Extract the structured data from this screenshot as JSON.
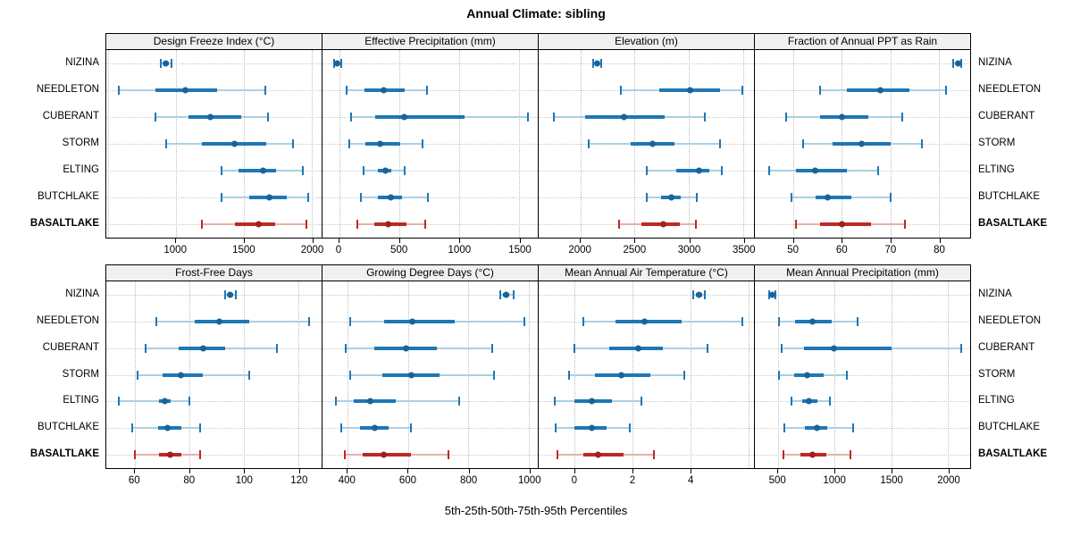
{
  "title": "Annual Climate: sibling",
  "caption": "5th-25th-50th-75th-95th Percentiles",
  "colors": {
    "blue_main": "#1f77b4",
    "blue_light": "#a9cde2",
    "blue_dot": "#186499",
    "red_main": "#bb2a25",
    "red_light": "#e2afa9",
    "red_dot": "#a31f1c",
    "panel_header_bg": "#f0f0f0",
    "border": "#000000",
    "grid": "#bdbdbd"
  },
  "sites": [
    {
      "name": "NIZINA",
      "style": "blue",
      "bold": false
    },
    {
      "name": "NEEDLETON",
      "style": "blue",
      "bold": false
    },
    {
      "name": "CUBERANT",
      "style": "blue",
      "bold": false
    },
    {
      "name": "STORM",
      "style": "blue",
      "bold": false
    },
    {
      "name": "ELTING",
      "style": "blue",
      "bold": false
    },
    {
      "name": "BUTCHLAKE",
      "style": "blue",
      "bold": false
    },
    {
      "name": "BASALTLAKE",
      "style": "red",
      "bold": true
    }
  ],
  "chart_data": {
    "type": "dotplot",
    "subtype": "percentile-ranges",
    "percentile_labels": [
      "5th",
      "25th",
      "50th",
      "75th",
      "95th"
    ],
    "layout": {
      "rows": 2,
      "cols": 4,
      "grid": "dotted",
      "site_labels": "both-sides"
    },
    "panels": [
      {
        "title": "Design Freeze Index (°C)",
        "row": 0,
        "col": 0,
        "domain": [
          490,
          2075
        ],
        "ticks": [
          1000,
          1500,
          2000
        ],
        "grid_ticks": [
          500,
          1000,
          1500,
          2000
        ],
        "series": [
          {
            "site": "NIZINA",
            "values": [
              890,
              910,
              930,
              950,
              970
            ]
          },
          {
            "site": "NEEDLETON",
            "values": [
              585,
              855,
              1075,
              1305,
              1660
            ]
          },
          {
            "site": "CUBERANT",
            "values": [
              850,
              1095,
              1255,
              1485,
              1680
            ]
          },
          {
            "site": "STORM",
            "values": [
              930,
              1195,
              1435,
              1665,
              1865
            ]
          },
          {
            "site": "ELTING",
            "values": [
              1340,
              1465,
              1645,
              1740,
              1940
            ]
          },
          {
            "site": "BUTCHLAKE",
            "values": [
              1340,
              1540,
              1690,
              1820,
              1975
            ]
          },
          {
            "site": "BASALTLAKE",
            "values": [
              1195,
              1435,
              1610,
              1730,
              1960
            ]
          }
        ]
      },
      {
        "title": "Effective Precipitation (mm)",
        "row": 0,
        "col": 1,
        "domain": [
          -140,
          1655
        ],
        "ticks": [
          0,
          500,
          1000,
          1500
        ],
        "grid_ticks": [
          0,
          500,
          1000,
          1500
        ],
        "series": [
          {
            "site": "NIZINA",
            "values": [
              -45,
              -30,
              -15,
              0,
              20
            ]
          },
          {
            "site": "NEEDLETON",
            "values": [
              60,
              210,
              370,
              545,
              735
            ]
          },
          {
            "site": "CUBERANT",
            "values": [
              100,
              300,
              540,
              1045,
              1575
            ]
          },
          {
            "site": "STORM",
            "values": [
              85,
              220,
              340,
              505,
              695
            ]
          },
          {
            "site": "ELTING",
            "values": [
              205,
              320,
              385,
              430,
              545
            ]
          },
          {
            "site": "BUTCHLAKE",
            "values": [
              180,
              325,
              430,
              525,
              740
            ]
          },
          {
            "site": "BASALTLAKE",
            "values": [
              150,
              290,
              410,
              560,
              720
            ]
          }
        ]
      },
      {
        "title": "Elevation (m)",
        "row": 0,
        "col": 2,
        "domain": [
          1615,
          3600
        ],
        "ticks": [
          2000,
          2500,
          3000,
          3500
        ],
        "grid_ticks": [
          2000,
          2500,
          3000,
          3500
        ],
        "series": [
          {
            "site": "NIZINA",
            "values": [
              2115,
              2140,
              2155,
              2170,
              2195
            ]
          },
          {
            "site": "NEEDLETON",
            "values": [
              2375,
              2725,
              3010,
              3285,
              3490
            ]
          },
          {
            "site": "CUBERANT",
            "values": [
              1755,
              2040,
              2400,
              2780,
              3145
            ]
          },
          {
            "site": "STORM",
            "values": [
              2075,
              2465,
              2665,
              2870,
              3290
            ]
          },
          {
            "site": "ELTING",
            "values": [
              2610,
              2880,
              3090,
              3185,
              3300
            ]
          },
          {
            "site": "BUTCHLAKE",
            "values": [
              2610,
              2740,
              2835,
              2925,
              3070
            ]
          },
          {
            "site": "BASALTLAKE",
            "values": [
              2360,
              2560,
              2765,
              2920,
              3065
            ]
          }
        ]
      },
      {
        "title": "Fraction of Annual PPT as Rain",
        "row": 0,
        "col": 3,
        "domain": [
          42,
          86.5
        ],
        "ticks": [
          50,
          60,
          70,
          80
        ],
        "grid_ticks": [
          50,
          60,
          70,
          80
        ],
        "series": [
          {
            "site": "NIZINA",
            "values": [
              83,
              83.5,
              84,
              84.2,
              84.7
            ]
          },
          {
            "site": "NEEDLETON",
            "values": [
              55.5,
              61,
              68,
              74,
              81.5
            ]
          },
          {
            "site": "CUBERANT",
            "values": [
              48.5,
              55.5,
              60,
              65.5,
              72.5
            ]
          },
          {
            "site": "STORM",
            "values": [
              52,
              58,
              64,
              70,
              76.5
            ]
          },
          {
            "site": "ELTING",
            "values": [
              45,
              50.5,
              54.5,
              61,
              67.5
            ]
          },
          {
            "site": "BUTCHLAKE",
            "values": [
              49.5,
              54.5,
              57,
              62,
              70
            ]
          },
          {
            "site": "BASALTLAKE",
            "values": [
              50.5,
              55.5,
              60,
              66,
              73
            ]
          }
        ]
      },
      {
        "title": "Frost-Free Days",
        "row": 1,
        "col": 0,
        "domain": [
          49.5,
          128.5
        ],
        "ticks": [
          60,
          80,
          100,
          120
        ],
        "grid_ticks": [
          60,
          80,
          100,
          120
        ],
        "series": [
          {
            "site": "NIZINA",
            "values": [
              93,
              94,
              95,
              96,
              97
            ]
          },
          {
            "site": "NEEDLETON",
            "values": [
              68,
              82,
              91,
              102,
              124
            ]
          },
          {
            "site": "CUBERANT",
            "values": [
              64,
              76,
              85,
              93,
              112
            ]
          },
          {
            "site": "STORM",
            "values": [
              61,
              70,
              77,
              85,
              102
            ]
          },
          {
            "site": "ELTING",
            "values": [
              54,
              69,
              71,
              73,
              80
            ]
          },
          {
            "site": "BUTCHLAKE",
            "values": [
              59,
              68.5,
              72,
              77,
              84
            ]
          },
          {
            "site": "BASALTLAKE",
            "values": [
              60,
              69,
              73,
              77,
              84
            ]
          }
        ]
      },
      {
        "title": "Growing Degree Days (°C)",
        "row": 1,
        "col": 1,
        "domain": [
          317,
          1030
        ],
        "ticks": [
          400,
          600,
          800,
          1000
        ],
        "grid_ticks": [
          400,
          600,
          800,
          1000
        ],
        "series": [
          {
            "site": "NIZINA",
            "values": [
              905,
              915,
              925,
              935,
              950
            ]
          },
          {
            "site": "NEEDLETON",
            "values": [
              410,
              520,
              615,
              755,
              985
            ]
          },
          {
            "site": "CUBERANT",
            "values": [
              395,
              490,
              595,
              695,
              880
            ]
          },
          {
            "site": "STORM",
            "values": [
              410,
              515,
              610,
              705,
              885
            ]
          },
          {
            "site": "ELTING",
            "values": [
              360,
              420,
              475,
              560,
              770
            ]
          },
          {
            "site": "BUTCHLAKE",
            "values": [
              380,
              440,
              490,
              535,
              610
            ]
          },
          {
            "site": "BASALTLAKE",
            "values": [
              390,
              450,
              520,
              610,
              735
            ]
          }
        ]
      },
      {
        "title": "Mean Annual Air Temperature (°C)",
        "row": 1,
        "col": 2,
        "domain": [
          -1.25,
          6.2
        ],
        "ticks": [
          0,
          2,
          4
        ],
        "grid_ticks": [
          0,
          2,
          4,
          6
        ],
        "series": [
          {
            "site": "NIZINA",
            "values": [
              4.1,
              4.2,
              4.3,
              4.4,
              4.5
            ]
          },
          {
            "site": "NEEDLETON",
            "values": [
              0.3,
              1.4,
              2.4,
              3.7,
              5.8
            ]
          },
          {
            "site": "CUBERANT",
            "values": [
              0.0,
              1.2,
              2.2,
              3.05,
              4.6
            ]
          },
          {
            "site": "STORM",
            "values": [
              -0.2,
              0.7,
              1.6,
              2.6,
              3.8
            ]
          },
          {
            "site": "ELTING",
            "values": [
              -0.7,
              0.0,
              0.6,
              1.3,
              2.3
            ]
          },
          {
            "site": "BUTCHLAKE",
            "values": [
              -0.65,
              0.0,
              0.6,
              1.1,
              1.9
            ]
          },
          {
            "site": "BASALTLAKE",
            "values": [
              -0.6,
              0.3,
              0.8,
              1.7,
              2.75
            ]
          }
        ]
      },
      {
        "title": "Mean Annual Precipitation (mm)",
        "row": 1,
        "col": 3,
        "domain": [
          295,
          2195
        ],
        "ticks": [
          500,
          1000,
          1500,
          2000
        ],
        "grid_ticks": [
          500,
          1000,
          1500,
          2000
        ],
        "series": [
          {
            "site": "NIZINA",
            "values": [
              425,
              435,
              445,
              460,
              480
            ]
          },
          {
            "site": "NEEDLETON",
            "values": [
              505,
              650,
              805,
              970,
              1200
            ]
          },
          {
            "site": "CUBERANT",
            "values": [
              535,
              730,
              995,
              1500,
              2120
            ]
          },
          {
            "site": "STORM",
            "values": [
              505,
              640,
              755,
              905,
              1110
            ]
          },
          {
            "site": "ELTING",
            "values": [
              615,
              715,
              770,
              845,
              960
            ]
          },
          {
            "site": "BUTCHLAKE",
            "values": [
              555,
              735,
              840,
              935,
              1160
            ]
          },
          {
            "site": "BASALTLAKE",
            "values": [
              545,
              700,
              805,
              925,
              1140
            ]
          }
        ]
      }
    ]
  }
}
